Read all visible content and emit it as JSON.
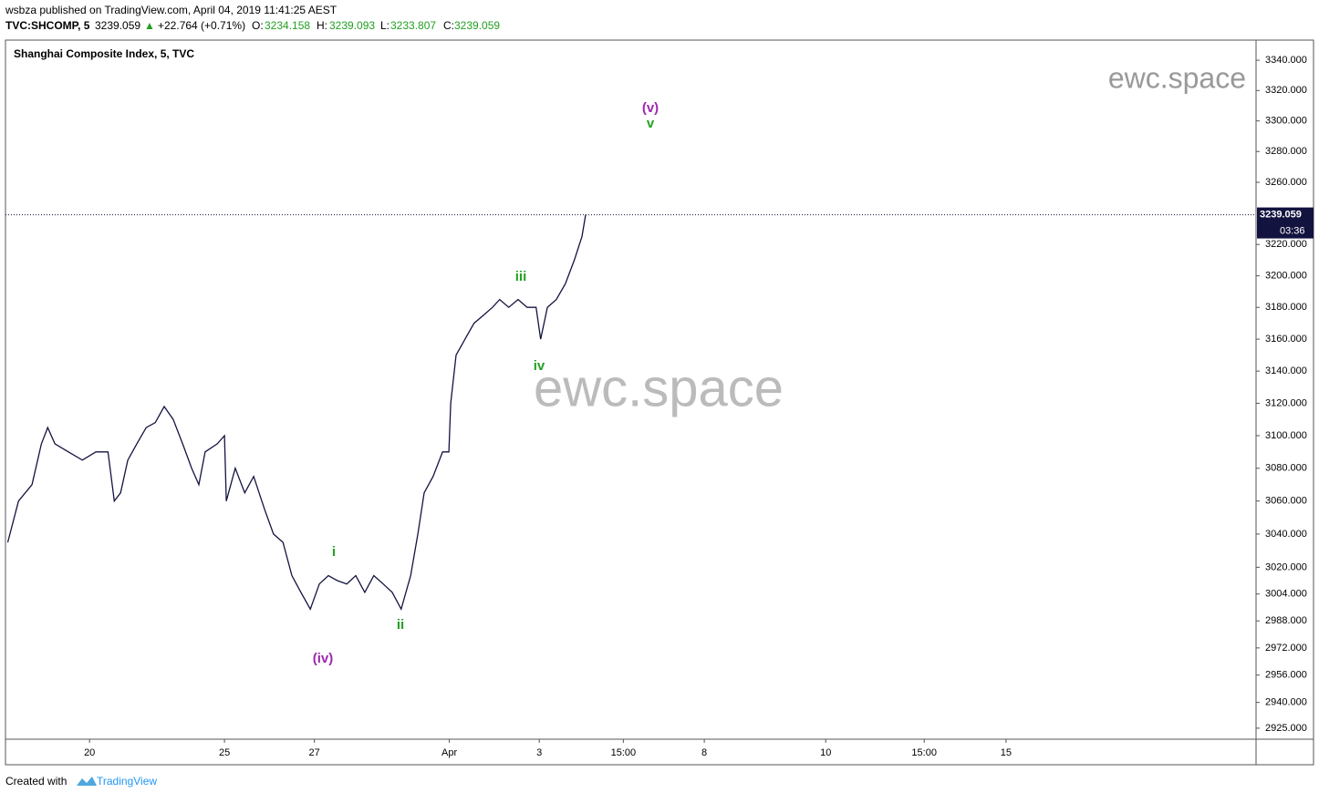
{
  "header": {
    "published": "wsbza published on TradingView.com, April 04, 2019 11:41:25 AEST",
    "symbol": "TVC:SHCOMP, 5",
    "price": "3239.059",
    "arrow": "▲",
    "change": "+22.764 (+0.71%)",
    "o_label": "O:",
    "o": "3234.158",
    "h_label": "H:",
    "h": "3239.093",
    "l_label": "L:",
    "l": "3233.807",
    "c_label": "C:",
    "c": "3239.059"
  },
  "chart_data": {
    "type": "line",
    "title": "Shanghai Composite Index, 5, TVC",
    "watermark": "ewc.space",
    "log_scale": true,
    "grid": false,
    "series": [
      {
        "name": "SHCOMP",
        "color": "#131340",
        "x": [
          -1.82,
          -1.58,
          -1.28,
          -1.07,
          -0.93,
          -0.77,
          -0.47,
          -0.16,
          0.14,
          0.41,
          0.55,
          0.69,
          0.85,
          1.05,
          1.26,
          1.46,
          1.66,
          1.86,
          2.07,
          2.27,
          2.43,
          2.57,
          2.84,
          3.0,
          3.04,
          3.24,
          3.45,
          3.65,
          3.89,
          4.09,
          4.3,
          4.5,
          4.7,
          4.91,
          5.11,
          5.31,
          5.51,
          5.72,
          5.92,
          6.12,
          6.32,
          6.53,
          6.73,
          6.93,
          7.14,
          7.3,
          7.44,
          7.64,
          7.85,
          7.99,
          8.03,
          8.15,
          8.35,
          8.55,
          8.76,
          8.96,
          9.12,
          9.32,
          9.53,
          9.73,
          9.93,
          10.03,
          10.18,
          10.38,
          10.58,
          10.78,
          10.95,
          11.03
        ],
        "values": [
          3035,
          3060,
          3070,
          3095,
          3105,
          3095,
          3090,
          3085,
          3090,
          3090,
          3060,
          3065,
          3085,
          3095,
          3105,
          3108,
          3118,
          3110,
          3095,
          3080,
          3070,
          3090,
          3095,
          3100,
          3060,
          3080,
          3065,
          3075,
          3055,
          3040,
          3035,
          3015,
          3005,
          2995,
          3010,
          3015,
          3012,
          3010,
          3015,
          3005,
          3015,
          3010,
          3005,
          2995,
          3015,
          3040,
          3065,
          3075,
          3090,
          3090,
          3120,
          3150,
          3160,
          3170,
          3175,
          3180,
          3185,
          3180,
          3185,
          3180,
          3180,
          3160,
          3180,
          3185,
          3195,
          3210,
          3225,
          3239.059
        ]
      }
    ],
    "last_price": 3239.059,
    "last_price_label": "3239.059",
    "countdown": "03:36",
    "xlim": [
      -1.87,
      25.94
    ],
    "xticks": [
      {
        "value": 0,
        "label": "20"
      },
      {
        "value": 3,
        "label": "25"
      },
      {
        "value": 5,
        "label": "27"
      },
      {
        "value": 8,
        "label": "Apr"
      },
      {
        "value": 10,
        "label": "3"
      },
      {
        "value": 11.87,
        "label": "15:00"
      },
      {
        "value": 13.67,
        "label": "8"
      },
      {
        "value": 16.37,
        "label": "10"
      },
      {
        "value": 18.56,
        "label": "15:00"
      },
      {
        "value": 20.38,
        "label": "15"
      }
    ],
    "ylim": [
      2918.6,
      3353.4
    ],
    "yticks": [
      {
        "value": 3340,
        "label": "3340.000"
      },
      {
        "value": 3320,
        "label": "3320.000"
      },
      {
        "value": 3300,
        "label": "3300.000"
      },
      {
        "value": 3280,
        "label": "3280.000"
      },
      {
        "value": 3260,
        "label": "3260.000"
      },
      {
        "value": 3220,
        "label": "3220.000"
      },
      {
        "value": 3200,
        "label": "3200.000"
      },
      {
        "value": 3180,
        "label": "3180.000"
      },
      {
        "value": 3160,
        "label": "3160.000"
      },
      {
        "value": 3140,
        "label": "3140.000"
      },
      {
        "value": 3120,
        "label": "3120.000"
      },
      {
        "value": 3100,
        "label": "3100.000"
      },
      {
        "value": 3080,
        "label": "3080.000"
      },
      {
        "value": 3060,
        "label": "3060.000"
      },
      {
        "value": 3040,
        "label": "3040.000"
      },
      {
        "value": 3020,
        "label": "3020.000"
      },
      {
        "value": 3004,
        "label": "3004.000"
      },
      {
        "value": 2988,
        "label": "2988.000"
      },
      {
        "value": 2972,
        "label": "2972.000"
      },
      {
        "value": 2956,
        "label": "2956.000"
      },
      {
        "value": 2940,
        "label": "2940.000"
      },
      {
        "value": 2925,
        "label": "2925.000"
      }
    ],
    "annotations": [
      {
        "text": "(iv)",
        "color": "#9c27b0"
      },
      {
        "text": "i",
        "color": "#22a022"
      },
      {
        "text": "ii",
        "color": "#22a022"
      },
      {
        "text": "iii",
        "color": "#22a022"
      },
      {
        "text": "iv",
        "color": "#22a022"
      },
      {
        "text": "(v)",
        "color": "#9c27b0"
      },
      {
        "text": "v",
        "color": "#22a022"
      }
    ]
  },
  "footer": {
    "created": "Created with",
    "brand": "TradingView"
  }
}
